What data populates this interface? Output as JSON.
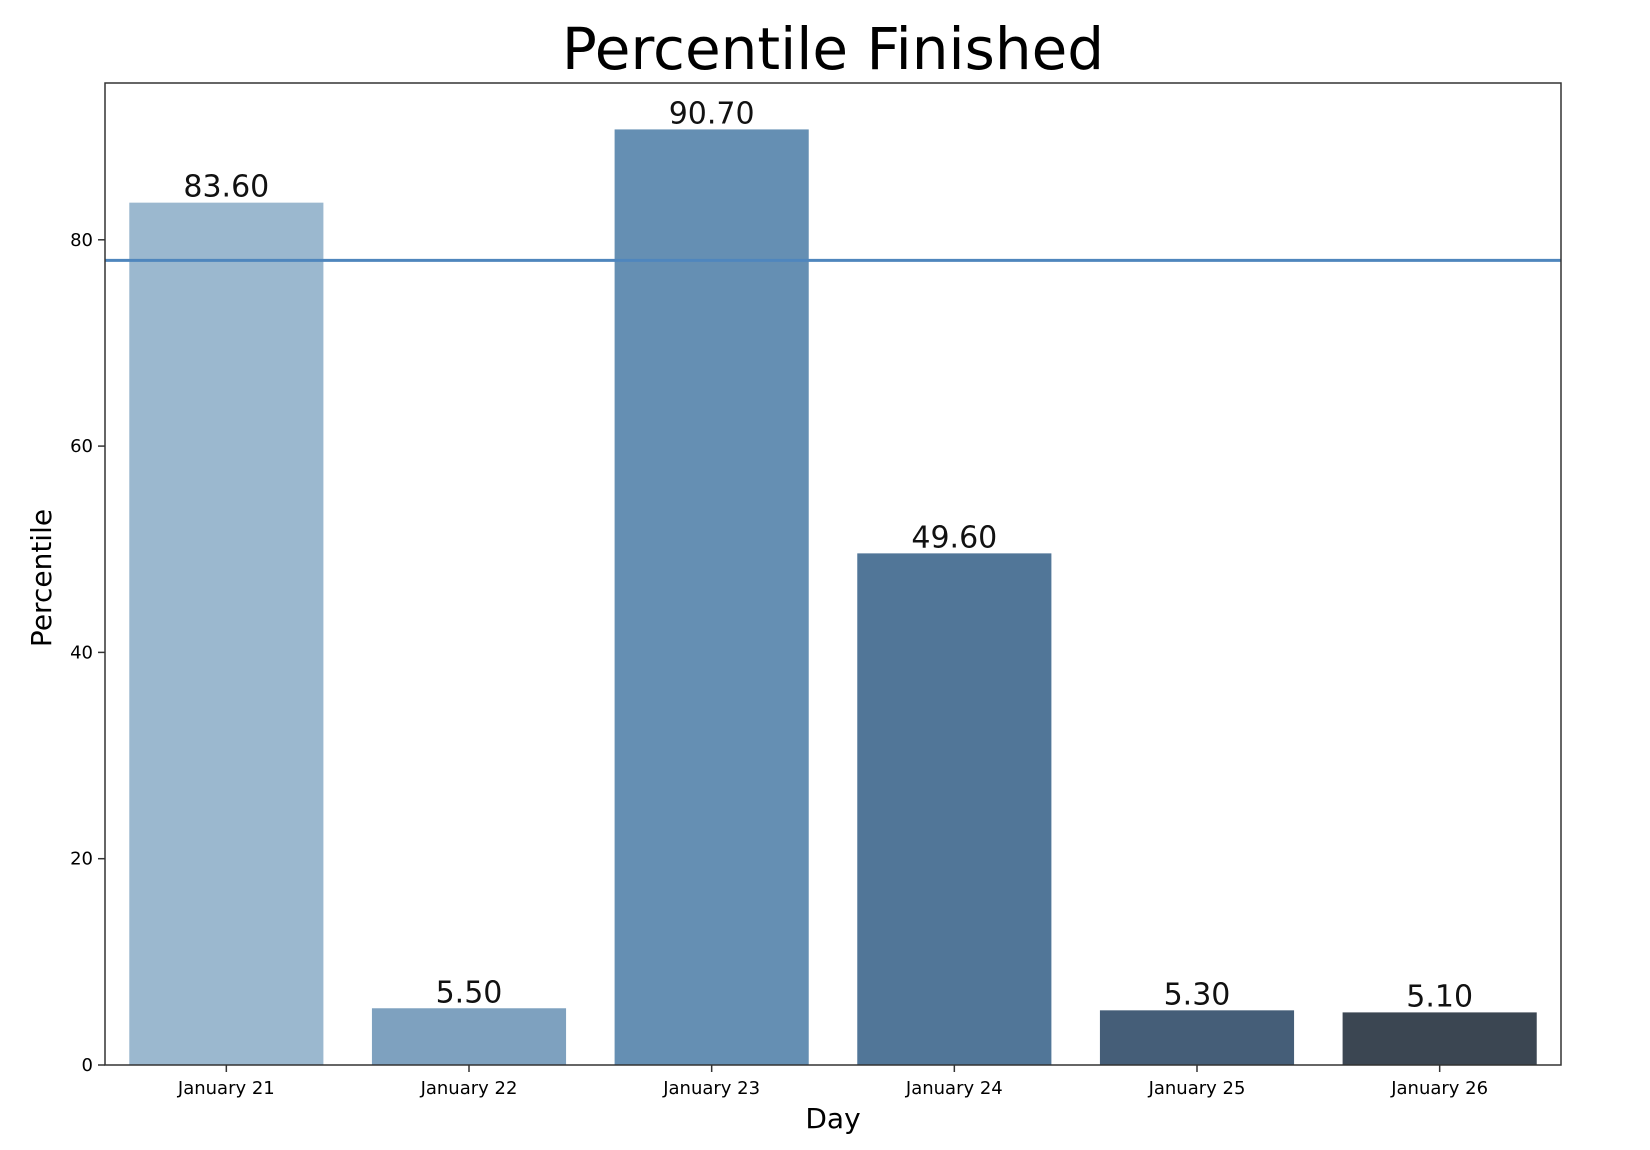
{
  "chart_data": {
    "type": "bar",
    "title": "Percentile Finished",
    "xlabel": "Day",
    "ylabel": "Percentile",
    "categories": [
      "January 21",
      "January 22",
      "January 23",
      "January 24",
      "January 25",
      "January 26"
    ],
    "values": [
      83.6,
      5.5,
      90.7,
      49.6,
      5.3,
      5.1
    ],
    "data_labels": [
      "83.60",
      "5.50",
      "90.70",
      "49.60",
      "5.30",
      "5.10"
    ],
    "bar_colors": [
      "#9bb8cf",
      "#7ea1bf",
      "#658fb3",
      "#517698",
      "#455e78",
      "#3b4652"
    ],
    "reference_line": {
      "value": 78,
      "color": "#4f86bd"
    },
    "yticks": [
      0,
      20,
      40,
      60,
      80
    ],
    "ylim": [
      0,
      95.2
    ],
    "grid": false,
    "legend": null
  }
}
